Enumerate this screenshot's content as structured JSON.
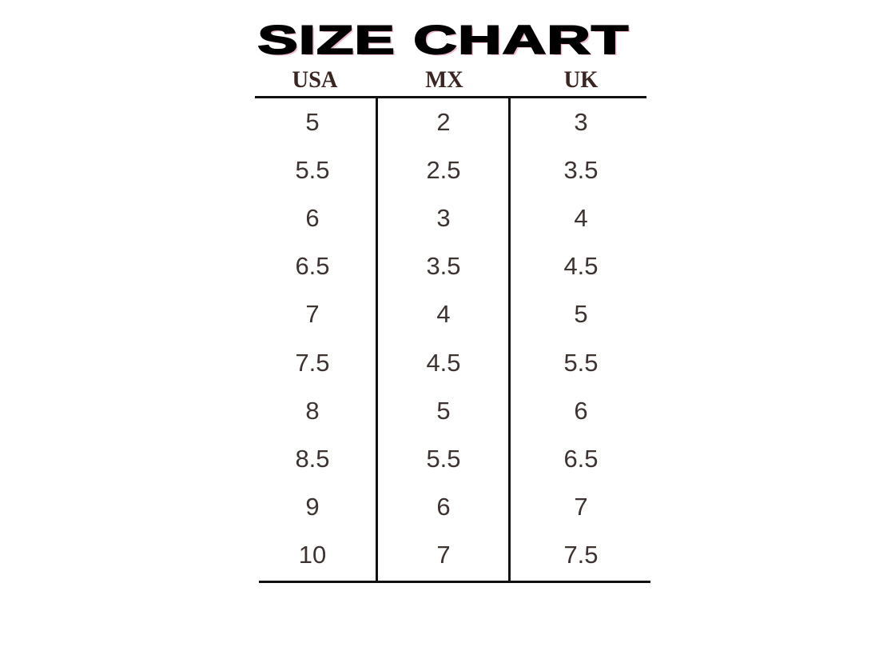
{
  "title": "SIZE CHART",
  "columns": [
    "USA",
    "MX",
    "UK"
  ],
  "rows": [
    [
      "5",
      "2",
      "3"
    ],
    [
      "5.5",
      "2.5",
      "3.5"
    ],
    [
      "6",
      "3",
      "4"
    ],
    [
      "6.5",
      "3.5",
      "4.5"
    ],
    [
      "7",
      "4",
      "5"
    ],
    [
      "7.5",
      "4.5",
      "5.5"
    ],
    [
      "8",
      "5",
      "6"
    ],
    [
      "8.5",
      "5.5",
      "6.5"
    ],
    [
      "9",
      "6",
      "7"
    ],
    [
      "10",
      "7",
      "7.5"
    ]
  ],
  "colors": {
    "title": "#000000",
    "title_shadow": "#f2b8d2",
    "header": "#3a2520",
    "text": "#3d3330"
  }
}
